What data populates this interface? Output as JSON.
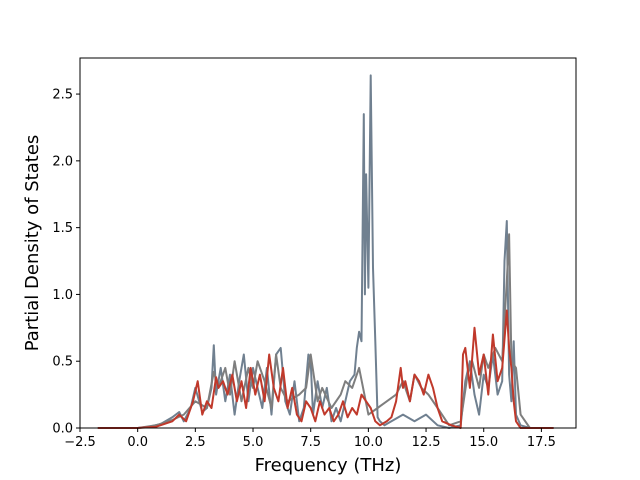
{
  "chart_data": {
    "type": "line",
    "title": "",
    "xlabel": "Frequency (THz)",
    "ylabel": "Partial Density of States",
    "xlim": [
      -2.5,
      19.0
    ],
    "ylim": [
      0.0,
      2.77
    ],
    "x_ticks": [
      -2.5,
      0.0,
      2.5,
      5.0,
      7.5,
      10.0,
      12.5,
      15.0,
      17.5
    ],
    "x_tick_labels": [
      "−2.5",
      "0.0",
      "2.5",
      "5.0",
      "7.5",
      "10.0",
      "12.5",
      "15.0",
      "17.5"
    ],
    "y_ticks": [
      0.0,
      0.5,
      1.0,
      1.5,
      2.0,
      2.5
    ],
    "y_tick_labels": [
      "0.0",
      "0.5",
      "1.0",
      "1.5",
      "2.0",
      "2.5"
    ],
    "grid": false,
    "legend": "none",
    "series": [
      {
        "color": "#708090",
        "x": [
          -1.7,
          0.0,
          0.5,
          1.0,
          1.5,
          1.8,
          2.0,
          2.3,
          2.5,
          2.8,
          3.0,
          3.2,
          3.3,
          3.4,
          3.6,
          3.8,
          4.0,
          4.2,
          4.4,
          4.6,
          4.8,
          5.0,
          5.2,
          5.4,
          5.6,
          5.8,
          6.0,
          6.2,
          6.4,
          6.6,
          6.8,
          7.0,
          7.2,
          7.4,
          7.5,
          7.6,
          7.8,
          8.0,
          8.2,
          8.4,
          8.6,
          8.8,
          9.0,
          9.2,
          9.4,
          9.5,
          9.6,
          9.7,
          9.8,
          9.85,
          9.9,
          10.0,
          10.1,
          10.15,
          10.2,
          10.3,
          10.4,
          10.5,
          10.7,
          11.0,
          11.5,
          12.0,
          12.5,
          13.0,
          13.5,
          14.0,
          14.2,
          14.4,
          14.6,
          14.8,
          15.0,
          15.2,
          15.4,
          15.6,
          15.8,
          15.9,
          16.0,
          16.1,
          16.2,
          16.3,
          16.4,
          16.6,
          17.0,
          18.0
        ],
        "values": [
          0.0,
          0.0,
          0.01,
          0.03,
          0.08,
          0.12,
          0.05,
          0.15,
          0.3,
          0.12,
          0.15,
          0.3,
          0.62,
          0.25,
          0.45,
          0.2,
          0.4,
          0.1,
          0.35,
          0.55,
          0.2,
          0.45,
          0.3,
          0.15,
          0.45,
          0.1,
          0.55,
          0.6,
          0.2,
          0.1,
          0.35,
          0.05,
          0.15,
          0.55,
          0.5,
          0.1,
          0.35,
          0.15,
          0.3,
          0.05,
          0.15,
          0.05,
          0.2,
          0.35,
          0.4,
          0.6,
          0.72,
          0.65,
          2.35,
          1.0,
          1.9,
          1.05,
          2.64,
          1.95,
          1.2,
          0.65,
          0.08,
          0.05,
          0.02,
          0.05,
          0.1,
          0.05,
          0.1,
          0.02,
          0.0,
          0.02,
          0.35,
          0.5,
          0.25,
          0.1,
          0.4,
          0.3,
          0.55,
          0.25,
          0.35,
          1.25,
          1.55,
          0.4,
          0.2,
          0.65,
          0.1,
          0.02,
          0.0,
          0.0
        ]
      },
      {
        "color": "#7e7e7e",
        "x": [
          -1.7,
          0.0,
          0.8,
          1.5,
          2.0,
          2.5,
          3.0,
          3.3,
          3.5,
          3.8,
          4.0,
          4.2,
          4.5,
          4.8,
          5.0,
          5.2,
          5.5,
          5.8,
          6.0,
          6.2,
          6.5,
          7.0,
          7.3,
          7.5,
          7.8,
          8.0,
          8.4,
          8.8,
          9.0,
          9.3,
          9.6,
          10.0,
          10.4,
          10.8,
          11.2,
          11.5,
          11.8,
          12.0,
          12.3,
          12.6,
          13.0,
          13.5,
          14.0,
          14.3,
          14.5,
          14.8,
          15.0,
          15.2,
          15.5,
          15.8,
          16.0,
          16.1,
          16.2,
          16.4,
          16.6,
          17.0,
          18.0
        ],
        "values": [
          0.0,
          0.0,
          0.02,
          0.06,
          0.1,
          0.2,
          0.15,
          0.42,
          0.3,
          0.45,
          0.25,
          0.5,
          0.2,
          0.45,
          0.3,
          0.5,
          0.35,
          0.15,
          0.55,
          0.3,
          0.2,
          0.25,
          0.3,
          0.55,
          0.2,
          0.3,
          0.15,
          0.25,
          0.35,
          0.3,
          0.45,
          0.1,
          0.15,
          0.2,
          0.25,
          0.35,
          0.2,
          0.4,
          0.3,
          0.25,
          0.15,
          0.02,
          0.05,
          0.4,
          0.5,
          0.3,
          0.55,
          0.45,
          0.6,
          0.5,
          1.1,
          1.45,
          0.5,
          0.45,
          0.1,
          0.0,
          0.0
        ]
      },
      {
        "color": "#c0392b",
        "x": [
          -1.7,
          0.0,
          0.8,
          1.5,
          1.8,
          2.1,
          2.4,
          2.6,
          2.8,
          3.0,
          3.2,
          3.4,
          3.5,
          3.7,
          3.9,
          4.1,
          4.3,
          4.5,
          4.7,
          4.9,
          5.1,
          5.3,
          5.5,
          5.7,
          5.9,
          6.1,
          6.3,
          6.5,
          6.7,
          6.9,
          7.1,
          7.3,
          7.5,
          7.7,
          7.9,
          8.1,
          8.3,
          8.5,
          8.7,
          8.9,
          9.1,
          9.3,
          9.5,
          9.7,
          9.9,
          10.1,
          10.3,
          10.5,
          10.8,
          11.0,
          11.2,
          11.4,
          11.5,
          11.6,
          11.8,
          12.0,
          12.2,
          12.4,
          12.6,
          12.8,
          13.0,
          13.2,
          13.6,
          14.0,
          14.1,
          14.2,
          14.4,
          14.6,
          14.8,
          15.0,
          15.2,
          15.4,
          15.6,
          15.8,
          16.0,
          16.1,
          16.2,
          16.3,
          16.4,
          16.6,
          17.0,
          18.0
        ],
        "values": [
          0.0,
          0.0,
          0.01,
          0.05,
          0.1,
          0.05,
          0.2,
          0.35,
          0.1,
          0.2,
          0.15,
          0.38,
          0.3,
          0.35,
          0.25,
          0.4,
          0.2,
          0.35,
          0.15,
          0.45,
          0.25,
          0.4,
          0.2,
          0.55,
          0.3,
          0.2,
          0.45,
          0.15,
          0.3,
          0.1,
          0.05,
          0.2,
          0.15,
          0.05,
          0.2,
          0.1,
          0.15,
          0.05,
          0.1,
          0.2,
          0.08,
          0.15,
          0.1,
          0.25,
          0.2,
          0.15,
          0.05,
          0.02,
          0.05,
          0.08,
          0.2,
          0.45,
          0.3,
          0.35,
          0.2,
          0.4,
          0.35,
          0.25,
          0.4,
          0.3,
          0.15,
          0.05,
          0.02,
          0.0,
          0.55,
          0.6,
          0.3,
          0.75,
          0.4,
          0.55,
          0.25,
          0.7,
          0.35,
          0.45,
          0.88,
          0.6,
          0.45,
          0.2,
          0.05,
          0.0,
          0.0,
          0.0
        ]
      }
    ]
  }
}
